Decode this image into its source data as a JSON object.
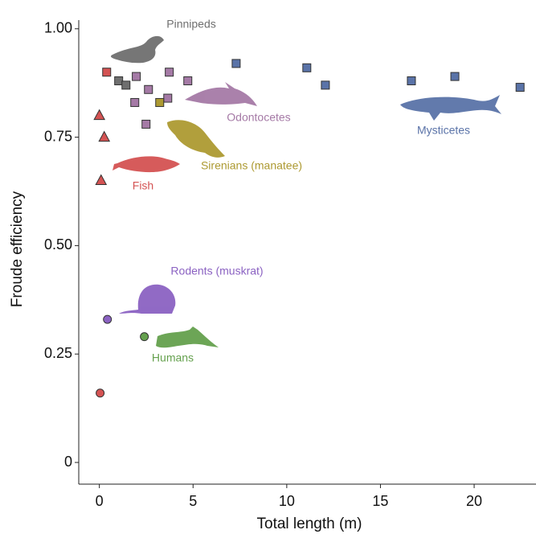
{
  "chart_data": {
    "type": "scatter",
    "xlabel": "Total length (m)",
    "ylabel": "Froude efficiency",
    "xlim": [
      -1.1,
      23.3
    ],
    "ylim": [
      -0.05,
      1.02
    ],
    "xticks": [
      0,
      5,
      10,
      15,
      20
    ],
    "yticks": [
      0,
      0.25,
      {
        "value": 0.5,
        "label": "0.50"
      },
      0.75,
      {
        "value": 1,
        "label": "1.00"
      }
    ],
    "series": [
      {
        "name": "Pinnipeds",
        "color": "#6f6f6f",
        "x": [
          1.03,
          1.42
        ],
        "y": [
          0.88,
          0.87
        ],
        "markers": [
          "square",
          "square"
        ]
      },
      {
        "name": "Odontocetes",
        "color": "#a57aa6",
        "x": [
          1.97,
          1.89,
          2.62,
          2.49,
          3.73,
          3.65,
          4.72
        ],
        "y": [
          0.89,
          0.83,
          0.86,
          0.78,
          0.9,
          0.84,
          0.88
        ],
        "markers": [
          "square",
          "square",
          "square",
          "square",
          "square",
          "square",
          "square"
        ]
      },
      {
        "name": "Mysticetes",
        "color": "#5a73a8",
        "x": [
          7.3,
          11.07,
          12.06,
          16.65,
          18.97,
          22.45
        ],
        "y": [
          0.92,
          0.91,
          0.87,
          0.88,
          0.89,
          0.865
        ],
        "markers": [
          "square",
          "square",
          "square",
          "square",
          "square",
          "square"
        ]
      },
      {
        "name": "Sirenians (manatee)",
        "color": "#ad9a32",
        "x": [
          3.22
        ],
        "y": [
          0.83
        ],
        "markers": [
          "square"
        ]
      },
      {
        "name": "Fish",
        "color": "#d45353",
        "x": [
          0,
          0.26,
          0.09,
          0.39,
          0.04
        ],
        "y": [
          0.8,
          0.75,
          0.65,
          0.9,
          0.16
        ],
        "markers": [
          "triangle",
          "triangle",
          "triangle",
          "square",
          "circle"
        ]
      },
      {
        "name": "Rodents (muskrat)",
        "color": "#8b62c2",
        "x": [
          0.43
        ],
        "y": [
          0.33
        ],
        "markers": [
          "circle"
        ]
      },
      {
        "name": "Humans",
        "color": "#65a14e",
        "x": [
          2.4
        ],
        "y": [
          0.29
        ],
        "markers": [
          "circle"
        ]
      }
    ]
  }
}
